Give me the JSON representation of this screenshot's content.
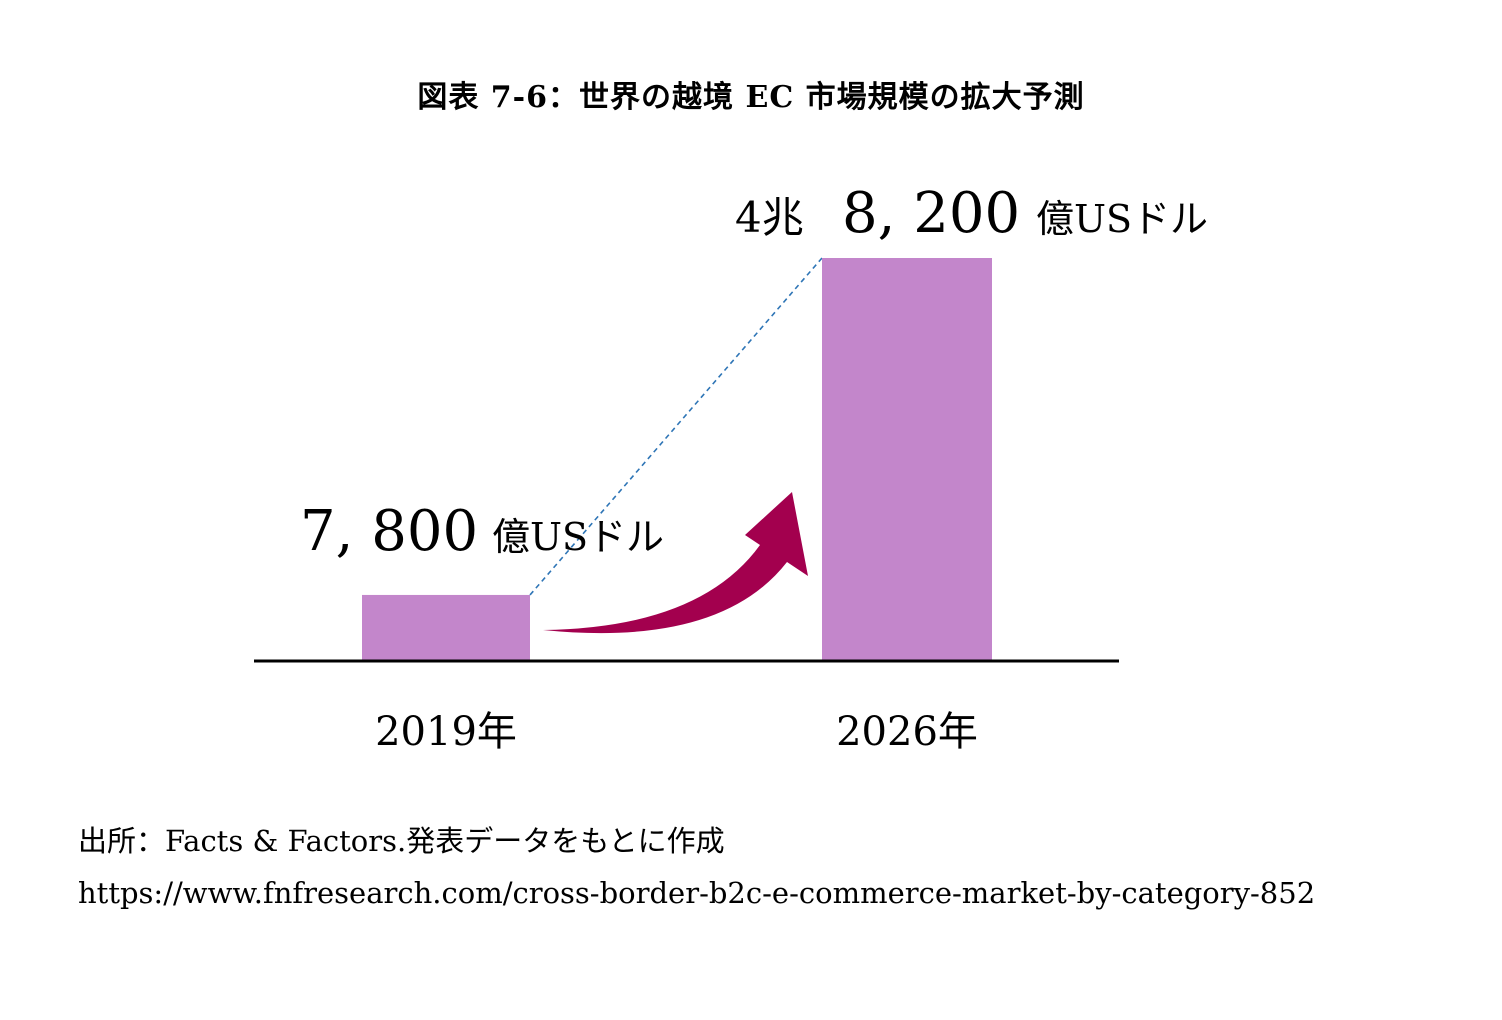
{
  "title": "図表 7-6：世界の越境 EC 市場規模の拡大予測",
  "chart_data": {
    "type": "bar",
    "categories": [
      "2019年",
      "2026年"
    ],
    "values": [
      7800,
      48200
    ],
    "value_labels": [
      {
        "number": "7, 800",
        "unit": "億USドル"
      },
      {
        "prefix": "4兆",
        "number": "8, 200",
        "unit": "億USドル"
      }
    ],
    "bar_color": "#c386cb",
    "arrow_color": "#a3004e",
    "trend_line_color": "#2e75b6",
    "ylim": [
      0,
      48200
    ]
  },
  "source": {
    "line": "出所：Facts & Factors.発表データをもとに作成",
    "url": "https://www.fnfresearch.com/cross-border-b2c-e-commerce-market-by-category-852"
  }
}
